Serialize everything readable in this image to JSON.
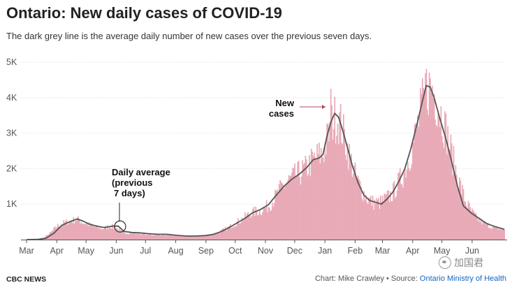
{
  "header": {
    "title": "Ontario: New daily cases of COVID-19",
    "subtitle": "The dark grey line is the average daily number of new cases over the previous seven days."
  },
  "footer": {
    "brand": "CBC NEWS",
    "credit": "Chart: Mike Crawley • Source: ",
    "source_link": "Ontario Ministry of Health"
  },
  "watermark": {
    "icon": "wechat-icon",
    "text": "加国君"
  },
  "colors": {
    "bars": "#e9aab7",
    "line": "#555555",
    "grid": "#d9d9d9",
    "annotation_arrow": "#b04a5a"
  },
  "chart_data": {
    "type": "bar",
    "title": "Ontario: New daily cases of COVID-19",
    "subtitle": "The dark grey line is the average daily number of new cases over the previous seven days.",
    "x_unit": "days since March 1 (2020 to June 2021)",
    "x_range": [
      0,
      490
    ],
    "ylim": [
      0,
      5000
    ],
    "y_ticks": [
      1000,
      2000,
      3000,
      4000,
      5000
    ],
    "y_tick_labels": [
      "1K",
      "2K",
      "3K",
      "4K",
      "5K"
    ],
    "x_tick_labels": [
      "Mar",
      "Apr",
      "May",
      "Jun",
      "Jul",
      "Aug",
      "Sep",
      "Oct",
      "Nov",
      "Dec",
      "Jan",
      "Feb",
      "Mar",
      "Apr",
      "May",
      "Jun"
    ],
    "x_tick_days": [
      0,
      31,
      61,
      92,
      122,
      153,
      184,
      214,
      245,
      275,
      306,
      337,
      365,
      396,
      426,
      457
    ],
    "grid": true,
    "legend": "none",
    "series": [
      {
        "name": "New cases (daily)",
        "kind": "bars",
        "smooth_keypoints": [
          [
            0,
            0
          ],
          [
            10,
            5
          ],
          [
            18,
            60
          ],
          [
            25,
            200
          ],
          [
            31,
            380
          ],
          [
            38,
            470
          ],
          [
            45,
            520
          ],
          [
            52,
            580
          ],
          [
            58,
            480
          ],
          [
            64,
            420
          ],
          [
            70,
            360
          ],
          [
            78,
            310
          ],
          [
            86,
            390
          ],
          [
            92,
            320
          ],
          [
            98,
            200
          ],
          [
            106,
            190
          ],
          [
            114,
            180
          ],
          [
            122,
            150
          ],
          [
            130,
            140
          ],
          [
            140,
            150
          ],
          [
            150,
            120
          ],
          [
            160,
            95
          ],
          [
            170,
            100
          ],
          [
            180,
            110
          ],
          [
            188,
            140
          ],
          [
            196,
            200
          ],
          [
            204,
            300
          ],
          [
            212,
            430
          ],
          [
            220,
            560
          ],
          [
            230,
            760
          ],
          [
            240,
            830
          ],
          [
            248,
            960
          ],
          [
            255,
            1200
          ],
          [
            262,
            1500
          ],
          [
            270,
            1700
          ],
          [
            278,
            1850
          ],
          [
            286,
            2000
          ],
          [
            292,
            2200
          ],
          [
            298,
            2350
          ],
          [
            304,
            2450
          ],
          [
            310,
            3000
          ],
          [
            314,
            3400
          ],
          [
            318,
            3500
          ],
          [
            322,
            3300
          ],
          [
            326,
            2900
          ],
          [
            332,
            2300
          ],
          [
            338,
            1750
          ],
          [
            344,
            1400
          ],
          [
            350,
            1150
          ],
          [
            356,
            1050
          ],
          [
            362,
            1050
          ],
          [
            368,
            1150
          ],
          [
            375,
            1300
          ],
          [
            380,
            1550
          ],
          [
            386,
            1850
          ],
          [
            392,
            2300
          ],
          [
            398,
            2900
          ],
          [
            404,
            3600
          ],
          [
            409,
            4200
          ],
          [
            412,
            4350
          ],
          [
            416,
            4300
          ],
          [
            420,
            4000
          ],
          [
            426,
            3500
          ],
          [
            432,
            2900
          ],
          [
            438,
            2200
          ],
          [
            444,
            1600
          ],
          [
            450,
            1100
          ],
          [
            456,
            800
          ],
          [
            462,
            600
          ],
          [
            468,
            480
          ],
          [
            474,
            400
          ],
          [
            480,
            330
          ],
          [
            486,
            300
          ],
          [
            490,
            280
          ]
        ],
        "peaks": [
          [
            312,
            4250
          ],
          [
            410,
            4812
          ]
        ]
      },
      {
        "name": "Daily average (previous 7 days)",
        "kind": "line",
        "keypoints": [
          [
            0,
            0
          ],
          [
            12,
            5
          ],
          [
            20,
            40
          ],
          [
            28,
            180
          ],
          [
            36,
            400
          ],
          [
            44,
            500
          ],
          [
            52,
            580
          ],
          [
            58,
            520
          ],
          [
            64,
            440
          ],
          [
            72,
            380
          ],
          [
            80,
            340
          ],
          [
            88,
            380
          ],
          [
            94,
            380
          ],
          [
            100,
            230
          ],
          [
            108,
            200
          ],
          [
            116,
            190
          ],
          [
            124,
            170
          ],
          [
            134,
            150
          ],
          [
            144,
            150
          ],
          [
            154,
            120
          ],
          [
            164,
            100
          ],
          [
            174,
            100
          ],
          [
            184,
            115
          ],
          [
            192,
            150
          ],
          [
            200,
            230
          ],
          [
            208,
            340
          ],
          [
            216,
            470
          ],
          [
            224,
            600
          ],
          [
            232,
            760
          ],
          [
            240,
            850
          ],
          [
            248,
            980
          ],
          [
            256,
            1250
          ],
          [
            264,
            1500
          ],
          [
            272,
            1700
          ],
          [
            280,
            1850
          ],
          [
            288,
            2050
          ],
          [
            294,
            2250
          ],
          [
            300,
            2300
          ],
          [
            304,
            2400
          ],
          [
            308,
            2900
          ],
          [
            312,
            3300
          ],
          [
            316,
            3560
          ],
          [
            320,
            3450
          ],
          [
            324,
            3100
          ],
          [
            328,
            2700
          ],
          [
            334,
            2100
          ],
          [
            340,
            1600
          ],
          [
            346,
            1250
          ],
          [
            352,
            1100
          ],
          [
            358,
            1050
          ],
          [
            364,
            1000
          ],
          [
            370,
            1150
          ],
          [
            376,
            1350
          ],
          [
            382,
            1650
          ],
          [
            388,
            2000
          ],
          [
            394,
            2550
          ],
          [
            400,
            3200
          ],
          [
            406,
            3900
          ],
          [
            410,
            4340
          ],
          [
            414,
            4300
          ],
          [
            418,
            4000
          ],
          [
            424,
            3400
          ],
          [
            430,
            2850
          ],
          [
            436,
            2200
          ],
          [
            442,
            1500
          ],
          [
            448,
            950
          ],
          [
            456,
            750
          ],
          [
            464,
            600
          ],
          [
            472,
            450
          ],
          [
            480,
            370
          ],
          [
            490,
            290
          ]
        ]
      }
    ],
    "annotations": [
      {
        "id": "daily-average",
        "lines": [
          "Daily average",
          "(previous",
          "7 days)"
        ],
        "target_day": 96,
        "target_value": 350
      },
      {
        "id": "new-cases",
        "lines": [
          "New",
          "cases"
        ],
        "target_day": 308,
        "target_value": 3800
      }
    ]
  }
}
